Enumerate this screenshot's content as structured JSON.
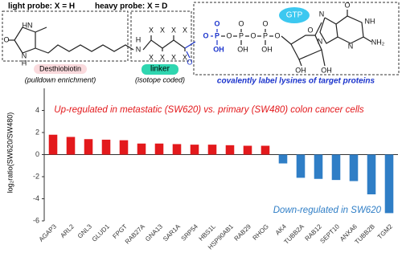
{
  "header": {
    "light_probe": "light probe: X = H",
    "heavy_probe": "heavy probe: X = D",
    "gtp": "GTP",
    "desthiobiotin": "Desthiobiotin",
    "pulldown": "(pulldown enrichment)",
    "linker": "linker",
    "isotope": "(isotope coded)",
    "covalent": "covalently label lysines of target proteins",
    "atoms": [
      "HN",
      "N",
      "H",
      "O",
      "H",
      "N",
      "X",
      "X",
      "X",
      "X",
      "X",
      "X",
      "X",
      "X",
      "O",
      "O",
      "P",
      "O",
      "OH",
      "O",
      "P",
      "O",
      "OH",
      "O",
      "P",
      "O",
      "OH",
      "O",
      "O",
      "OH",
      "OH",
      "O",
      "NH",
      "N",
      "N",
      "N",
      "NH₂"
    ]
  },
  "chart_data": {
    "type": "bar",
    "ylabel": "log₂ratio(SW620/SW480)",
    "annotations": [
      "Up-regulated in metastatic (SW620) vs. primary (SW480) colon cancer cells",
      "Down-regulated in SW620"
    ],
    "categories": [
      "AGAP3",
      "ARL2",
      "GNL3",
      "GLUD1",
      "FPGT",
      "RAB27A",
      "GNA13",
      "SAR1A",
      "SRP54",
      "HBS1L",
      "HSP90AB1",
      "RAB29",
      "RHOG",
      "AK4",
      "TUBB2A",
      "RAB12",
      "SEPT10",
      "ANXA6",
      "TUBB2B",
      "TGM2"
    ],
    "values": [
      1.8,
      1.6,
      1.4,
      1.35,
      1.3,
      1.0,
      1.0,
      0.95,
      0.9,
      0.9,
      0.85,
      0.8,
      0.8,
      -0.8,
      -2.1,
      -2.2,
      -2.3,
      -2.4,
      -3.6,
      -5.3
    ],
    "colors": {
      "up": "#e3191c",
      "down": "#2f7ec6"
    },
    "ylim": [
      -6,
      6
    ],
    "yticks": [
      -6,
      -4,
      -2,
      0,
      2,
      4
    ]
  }
}
